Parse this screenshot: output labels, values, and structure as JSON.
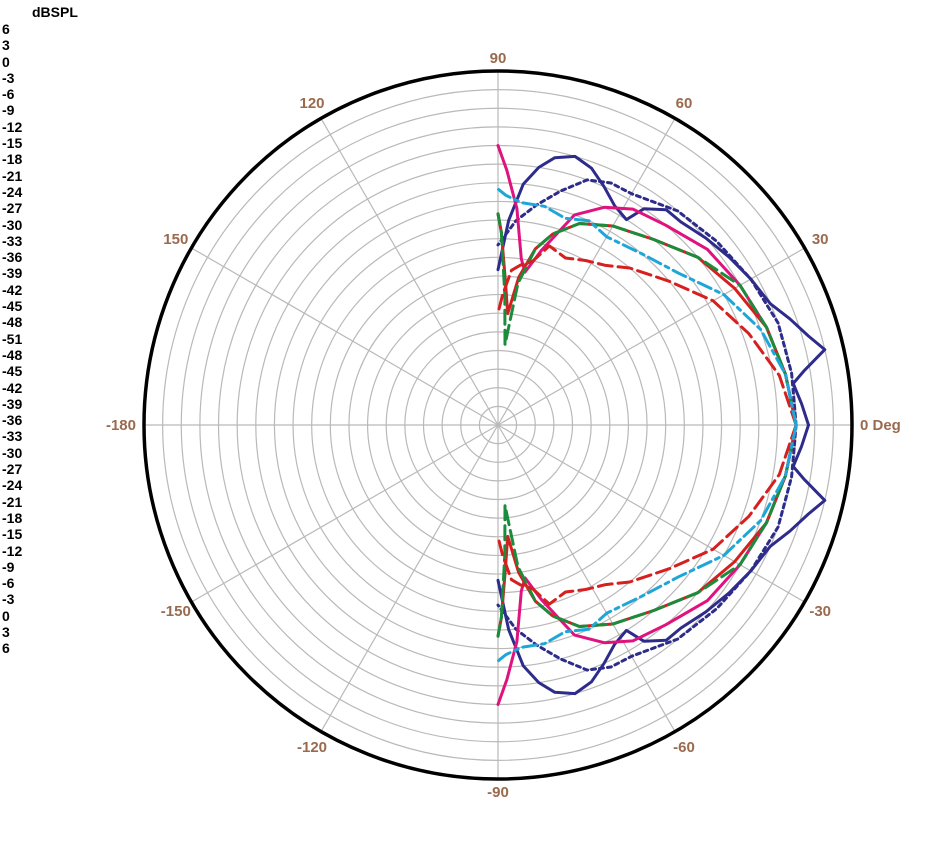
{
  "chart_data": {
    "type": "polar-line",
    "unit_label": "dBSPL",
    "radial_ticks_upper": [
      "6",
      "3",
      "0",
      "-3",
      "-6",
      "-9",
      "-12",
      "-15",
      "-18",
      "-21",
      "-24",
      "-27",
      "-30",
      "-33",
      "-36",
      "-39",
      "-42",
      "-45",
      "-48",
      "-51"
    ],
    "radial_ticks_lower": [
      "-48",
      "-45",
      "-42",
      "-39",
      "-36",
      "-33",
      "-30",
      "-27",
      "-24",
      "-21",
      "-18",
      "-15",
      "-12",
      "-9",
      "-6",
      "-3",
      "0",
      "3",
      "6"
    ],
    "radial_range": [
      -51,
      6
    ],
    "radial_step": 3,
    "angle_step_deg": 30,
    "angle_labels": [
      {
        "deg": 0,
        "text": "0 Deg"
      },
      {
        "deg": 30,
        "text": "30"
      },
      {
        "deg": 60,
        "text": "60"
      },
      {
        "deg": 90,
        "text": "90"
      },
      {
        "deg": 120,
        "text": "120"
      },
      {
        "deg": 150,
        "text": "150"
      },
      {
        "deg": 180,
        "text": "-180"
      },
      {
        "deg": -150,
        "text": "-150"
      },
      {
        "deg": -120,
        "text": "-120"
      },
      {
        "deg": -90,
        "text": "-90"
      },
      {
        "deg": -60,
        "text": "-60"
      },
      {
        "deg": -30,
        "text": "-30"
      }
    ],
    "grid": true,
    "series": [
      {
        "color": "#2e2c8a",
        "dash": "solid",
        "points": [
          [
            0,
            -1
          ],
          [
            4,
            -2
          ],
          [
            8,
            -3
          ],
          [
            10,
            -1
          ],
          [
            13,
            3
          ],
          [
            16,
            1
          ],
          [
            20,
            -1
          ],
          [
            24,
            -3
          ],
          [
            30,
            -4
          ],
          [
            36,
            -5
          ],
          [
            42,
            -6
          ],
          [
            48,
            -7
          ],
          [
            52,
            -7
          ],
          [
            56,
            -9
          ],
          [
            58,
            -12
          ],
          [
            62,
            -11
          ],
          [
            66,
            -9
          ],
          [
            70,
            -7
          ],
          [
            74,
            -6
          ],
          [
            78,
            -7
          ],
          [
            81,
            -9
          ],
          [
            84,
            -12
          ],
          [
            87,
            -18
          ],
          [
            90,
            -26
          ]
        ]
      },
      {
        "color": "#2e2c8a",
        "dash": "dotted",
        "points": [
          [
            0,
            -3
          ],
          [
            10,
            -3
          ],
          [
            20,
            -3
          ],
          [
            30,
            -4
          ],
          [
            40,
            -5
          ],
          [
            50,
            -6
          ],
          [
            60,
            -8
          ],
          [
            65,
            -8
          ],
          [
            70,
            -9
          ],
          [
            75,
            -12
          ],
          [
            80,
            -15
          ],
          [
            85,
            -18
          ],
          [
            90,
            -22
          ]
        ]
      },
      {
        "color": "#e0127e",
        "dash": "solid",
        "points": [
          [
            0,
            -3
          ],
          [
            10,
            -4
          ],
          [
            20,
            -5
          ],
          [
            30,
            -6
          ],
          [
            40,
            -7
          ],
          [
            50,
            -9
          ],
          [
            58,
            -10
          ],
          [
            64,
            -12
          ],
          [
            70,
            -15
          ],
          [
            76,
            -22
          ],
          [
            80,
            -26
          ],
          [
            82,
            -24
          ],
          [
            85,
            -16
          ],
          [
            88,
            -10
          ],
          [
            90,
            -6
          ]
        ]
      },
      {
        "color": "#d61f1f",
        "dash": "solid",
        "points": [
          [
            0,
            -3
          ],
          [
            10,
            -4
          ],
          [
            20,
            -5
          ],
          [
            30,
            -7
          ],
          [
            40,
            -9
          ],
          [
            50,
            -12
          ],
          [
            60,
            -14
          ],
          [
            68,
            -16
          ],
          [
            74,
            -19
          ],
          [
            78,
            -22
          ],
          [
            82,
            -27
          ],
          [
            85,
            -33
          ],
          [
            87,
            -28
          ],
          [
            89,
            -20
          ],
          [
            90,
            -17
          ]
        ]
      },
      {
        "color": "#1a8c3c",
        "dash": "dashed",
        "points": [
          [
            0,
            -3
          ],
          [
            10,
            -4
          ],
          [
            20,
            -5
          ],
          [
            30,
            -6
          ],
          [
            40,
            -9
          ],
          [
            50,
            -12
          ],
          [
            60,
            -14
          ],
          [
            68,
            -16
          ],
          [
            74,
            -19
          ],
          [
            78,
            -22
          ],
          [
            82,
            -28
          ],
          [
            85,
            -38
          ],
          [
            87,
            -30
          ],
          [
            89,
            -20
          ],
          [
            90,
            -17
          ]
        ]
      },
      {
        "color": "#d61f1f",
        "dash": "dashed",
        "points": [
          [
            0,
            -3
          ],
          [
            10,
            -5
          ],
          [
            20,
            -8
          ],
          [
            30,
            -11
          ],
          [
            40,
            -15
          ],
          [
            50,
            -18
          ],
          [
            56,
            -20
          ],
          [
            62,
            -21
          ],
          [
            68,
            -22
          ],
          [
            74,
            -21
          ],
          [
            78,
            -24
          ],
          [
            82,
            -25
          ],
          [
            85,
            -26
          ],
          [
            88,
            -30
          ],
          [
            90,
            -33
          ]
        ]
      },
      {
        "color": "#1fa6d8",
        "dash": "dashdot",
        "points": [
          [
            0,
            -3
          ],
          [
            10,
            -4
          ],
          [
            20,
            -6
          ],
          [
            30,
            -9
          ],
          [
            40,
            -13
          ],
          [
            50,
            -15
          ],
          [
            60,
            -16
          ],
          [
            66,
            -15
          ],
          [
            72,
            -16
          ],
          [
            78,
            -15
          ],
          [
            84,
            -15
          ],
          [
            88,
            -14
          ],
          [
            90,
            -13
          ]
        ]
      }
    ]
  }
}
